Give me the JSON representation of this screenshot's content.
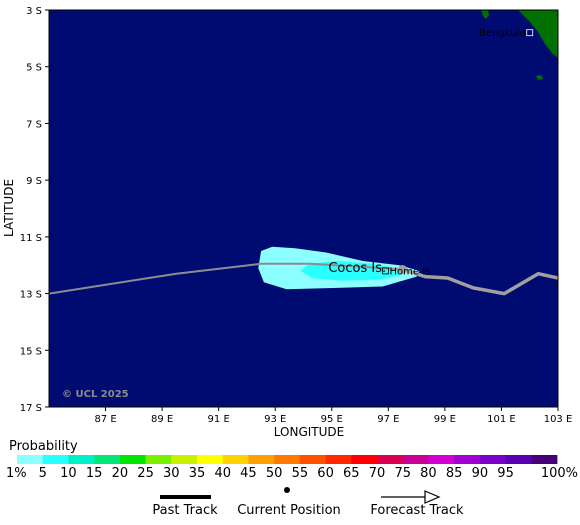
{
  "map": {
    "latitude_label": "LATITUDE",
    "longitude_label": "LONGITUDE",
    "lat_ticks": [
      "3 S",
      "5 S",
      "7 S",
      "9 S",
      "11 S",
      "13 S",
      "15 S",
      "17 S"
    ],
    "lon_ticks": [
      "87 E",
      "89 E",
      "91 E",
      "93 E",
      "95 E",
      "97 E",
      "99 E",
      "101 E",
      "103 E"
    ],
    "lat_range_south": [
      3,
      17
    ],
    "lon_range_east": [
      85,
      103
    ],
    "ocean_color": "#000b72",
    "land_color": "#007000",
    "copyright": "© UCL 2025",
    "places": [
      {
        "name": "Bengkulu",
        "lon": 102.0,
        "lat": -3.8
      },
      {
        "name": "Cocos Is.",
        "lon": 95.9,
        "lat": -12.1
      },
      {
        "name": "Home Is.",
        "lon": 96.9,
        "lat": -12.2
      }
    ]
  },
  "track": {
    "past_track": [
      [
        85.0,
        -13.0
      ],
      [
        89.5,
        -12.3
      ],
      [
        92.5,
        -11.95
      ],
      [
        94.2,
        -11.95
      ],
      [
        96.0,
        -12.05
      ],
      [
        97.5,
        -12.15
      ]
    ],
    "forecast_track": [
      [
        97.5,
        -12.15
      ],
      [
        98.3,
        -12.4
      ],
      [
        99.1,
        -12.45
      ],
      [
        100.0,
        -12.8
      ],
      [
        101.1,
        -13.0
      ],
      [
        102.3,
        -12.3
      ],
      [
        103.0,
        -12.45
      ]
    ],
    "current_position": [
      97.5,
      -12.15
    ],
    "past_color": "#8c8c8c",
    "forecast_color": "#a0a0a0"
  },
  "probability": {
    "title": "Probability",
    "levels": [
      "1%",
      "5",
      "10",
      "15",
      "20",
      "25",
      "30",
      "35",
      "40",
      "45",
      "50",
      "55",
      "60",
      "65",
      "70",
      "75",
      "80",
      "85",
      "90",
      "95",
      "100%"
    ],
    "colors": [
      "#8cffff",
      "#28ffff",
      "#00f0c8",
      "#00e678",
      "#00e600",
      "#78f000",
      "#c8f000",
      "#ffff00",
      "#ffd200",
      "#ffa000",
      "#ff7800",
      "#ff5000",
      "#ff2800",
      "#ff0000",
      "#dc0050",
      "#c80096",
      "#d200d2",
      "#a000d2",
      "#7800c8",
      "#5a00b4",
      "#460078"
    ],
    "regions": [
      {
        "level": "1%",
        "color": "#8cffff",
        "polygon": [
          [
            92.5,
            -11.5
          ],
          [
            92.9,
            -11.35
          ],
          [
            93.7,
            -11.4
          ],
          [
            94.8,
            -11.55
          ],
          [
            96.1,
            -11.85
          ],
          [
            97.4,
            -12.0
          ],
          [
            98.1,
            -12.2
          ],
          [
            98.0,
            -12.4
          ],
          [
            96.8,
            -12.75
          ],
          [
            95.2,
            -12.8
          ],
          [
            93.4,
            -12.85
          ],
          [
            92.6,
            -12.6
          ],
          [
            92.4,
            -12.1
          ]
        ]
      },
      {
        "level": "5",
        "color": "#28ffff",
        "polygon": [
          [
            94.2,
            -11.95
          ],
          [
            95.2,
            -11.85
          ],
          [
            96.4,
            -11.95
          ],
          [
            97.3,
            -12.1
          ],
          [
            97.6,
            -12.3
          ],
          [
            96.7,
            -12.5
          ],
          [
            95.4,
            -12.55
          ],
          [
            94.3,
            -12.45
          ],
          [
            93.9,
            -12.2
          ]
        ]
      }
    ]
  },
  "key": {
    "past_track": "Past Track",
    "current_position": "Current Position",
    "forecast_track": "Forecast Track"
  }
}
